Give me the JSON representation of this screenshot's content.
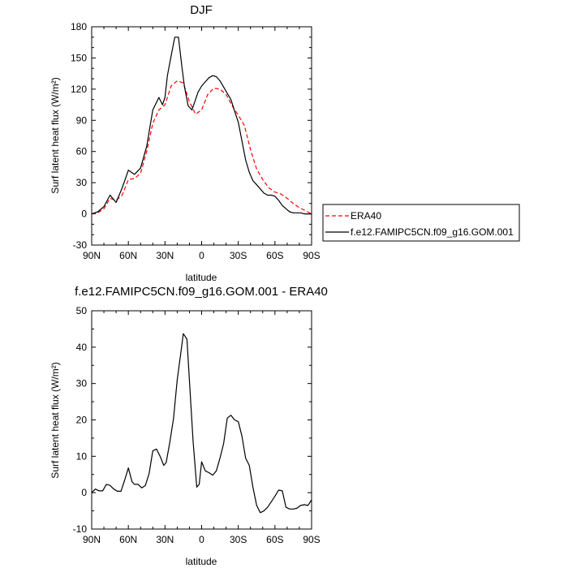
{
  "chart_data": [
    {
      "type": "line",
      "title": "DJF",
      "xlabel": "latitude",
      "ylabel": "Surf latent heat flux (W/m²)",
      "xlim": [
        90,
        -90
      ],
      "ylim": [
        -30,
        180
      ],
      "x_ticks": [
        90,
        60,
        30,
        0,
        -30,
        -60,
        -90
      ],
      "x_tick_labels": [
        "90N",
        "60N",
        "30N",
        "0",
        "30S",
        "60S",
        "90S"
      ],
      "y_ticks": [
        -30,
        0,
        30,
        60,
        90,
        120,
        150,
        180
      ],
      "y_tick_labels": [
        "-30",
        "0",
        "30",
        "60",
        "90",
        "120",
        "150",
        "180"
      ],
      "legend_position": "right",
      "series": [
        {
          "name": "ERA40",
          "color": "#ff0000",
          "dash": true,
          "x": [
            90,
            85,
            80,
            75,
            70,
            65,
            60,
            55,
            50,
            45,
            40,
            35,
            30,
            25,
            20,
            15,
            10,
            5,
            0,
            -5,
            -10,
            -15,
            -20,
            -25,
            -30,
            -35,
            -40,
            -45,
            -50,
            -55,
            -60,
            -65,
            -70,
            -75,
            -80,
            -85,
            -90
          ],
          "values": [
            0,
            1,
            5,
            15,
            13,
            18,
            33,
            34,
            39,
            60,
            87,
            100,
            105,
            123,
            128,
            126,
            108,
            96,
            100,
            115,
            121,
            120,
            115,
            104,
            95,
            85,
            62,
            43,
            33,
            25,
            21,
            19,
            15,
            10,
            6,
            3,
            0
          ]
        },
        {
          "name": "f.e12.FAMIPC5CN.f09_g16.GOM.001",
          "color": "#000000",
          "dash": false,
          "x": [
            90,
            85,
            80,
            75,
            70,
            65,
            60,
            55,
            50,
            45,
            40,
            35,
            32,
            30,
            28,
            25,
            22,
            19,
            16,
            14,
            11,
            8,
            5,
            3,
            0,
            -3,
            -6,
            -9,
            -12,
            -15,
            -18,
            -21,
            -24,
            -27,
            -30,
            -33,
            -36,
            -39,
            -42,
            -45,
            -48,
            -51,
            -54,
            -57,
            -60,
            -63,
            -66,
            -69,
            -72,
            -75,
            -78,
            -81,
            -84,
            -87,
            -90
          ],
          "values": [
            0,
            2,
            7,
            18,
            11,
            25,
            42,
            38,
            44,
            65,
            100,
            112,
            105,
            112,
            133,
            152,
            170,
            170,
            140,
            122,
            104,
            100,
            110,
            117,
            123,
            127,
            131,
            133,
            132,
            128,
            122,
            116,
            110,
            99,
            88,
            70,
            52,
            40,
            32,
            28,
            24,
            20,
            18,
            18,
            17,
            13,
            8,
            5,
            2,
            1,
            1,
            1,
            0,
            0,
            0
          ]
        }
      ]
    },
    {
      "type": "line",
      "title": "f.e12.FAMIPC5CN.f09_g16.GOM.001 - ERA40",
      "xlabel": "latitude",
      "ylabel": "Surf latent heat flux (W/m²)",
      "xlim": [
        90,
        -90
      ],
      "ylim": [
        -10,
        50
      ],
      "x_ticks": [
        90,
        60,
        30,
        0,
        -30,
        -60,
        -90
      ],
      "x_tick_labels": [
        "90N",
        "60N",
        "30N",
        "0",
        "30S",
        "60S",
        "90S"
      ],
      "y_ticks": [
        -10,
        0,
        10,
        20,
        30,
        40,
        50
      ],
      "y_tick_labels": [
        "-10",
        "0",
        "10",
        "20",
        "30",
        "40",
        "50"
      ],
      "series": [
        {
          "color": "#000000",
          "dash": false,
          "x": [
            90,
            87,
            84,
            81,
            78,
            75,
            72,
            69,
            66,
            63,
            60,
            57,
            55,
            52,
            49,
            46,
            43,
            40,
            37,
            34,
            31,
            29,
            26,
            23,
            20,
            17,
            15,
            12,
            10,
            7,
            4,
            2,
            0,
            -3,
            -6,
            -9,
            -12,
            -15,
            -18,
            -21,
            -24,
            -27,
            -30,
            -33,
            -36,
            -39,
            -42,
            -45,
            -48,
            -51,
            -54,
            -57,
            -60,
            -63,
            -66,
            -69,
            -72,
            -75,
            -78,
            -81,
            -84,
            -87,
            -90
          ],
          "values": [
            0,
            1,
            0.5,
            0.5,
            2.3,
            2,
            1,
            0.4,
            0.4,
            3.5,
            6.8,
            3,
            2.3,
            2.3,
            1.3,
            2,
            5.3,
            11.5,
            12,
            10,
            7.5,
            8.3,
            14,
            20.5,
            31,
            38.5,
            43.7,
            42.2,
            31,
            14,
            1.5,
            2.3,
            8.5,
            6,
            5.5,
            4.8,
            6,
            9.5,
            13.5,
            20.5,
            21.3,
            20,
            19.5,
            15.5,
            9.5,
            7.5,
            1.5,
            -3.5,
            -5.5,
            -5,
            -4,
            -2.5,
            -1,
            0.7,
            0.5,
            -4,
            -4.5,
            -4.5,
            -4.3,
            -3.5,
            -3.3,
            -3.5,
            -2
          ]
        }
      ]
    }
  ]
}
